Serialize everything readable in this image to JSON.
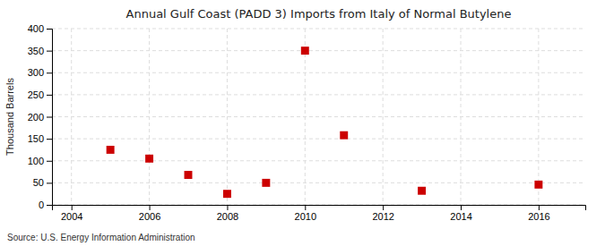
{
  "chart_data": {
    "type": "scatter",
    "title": "Annual Gulf Coast (PADD 3) Imports from Italy of Normal Butylene",
    "ylabel": "Thousand Barrels",
    "source": "Source: U.S. Energy Information Administration",
    "x": [
      2005,
      2006,
      2007,
      2008,
      2009,
      2010,
      2011,
      2013,
      2016
    ],
    "values": [
      125,
      105,
      68,
      25,
      50,
      350,
      158,
      32,
      46
    ],
    "xlim": [
      2003.5,
      2017.2
    ],
    "ylim": [
      0,
      400
    ],
    "xticks": [
      2004,
      2006,
      2008,
      2010,
      2012,
      2014,
      2016
    ],
    "yticks": [
      0,
      50,
      100,
      150,
      200,
      250,
      300,
      350,
      400
    ],
    "color": "#cc0000",
    "marker": "square",
    "grid": true
  }
}
